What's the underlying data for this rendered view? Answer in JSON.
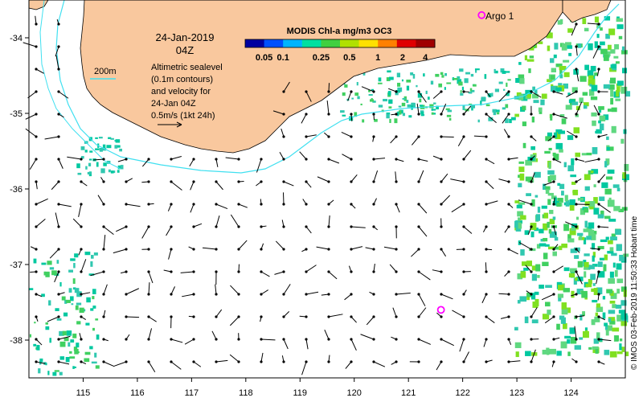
{
  "map": {
    "date_label": "24-Jan-2019",
    "time_label": "04Z",
    "contour_label": "200m",
    "legend_lines": [
      "Altimetric sealevel",
      "(0.1m contours)",
      "and velocity for",
      "24-Jan 04Z",
      "0.5m/s (1kt 24h)"
    ],
    "colorbar": {
      "title": "MODIS Chl-a mg/m3 OC3",
      "ticks": [
        "0.05",
        "0.1",
        "0.25",
        "0.5",
        "1",
        "2",
        "4"
      ],
      "colors": [
        "#0000a0",
        "#0050ff",
        "#00b4ff",
        "#00e0a0",
        "#40d040",
        "#b0e000",
        "#ffe000",
        "#ff8000",
        "#e00000",
        "#a00000"
      ]
    },
    "argo": {
      "label": "Argo 1",
      "floats": [
        {
          "lon": 122.35,
          "lat": -33.7
        },
        {
          "lon": 121.6,
          "lat": -37.6
        }
      ],
      "color": "#ff00ff"
    },
    "x_ticks": [
      "115",
      "116",
      "117",
      "118",
      "119",
      "120",
      "121",
      "122",
      "123",
      "124"
    ],
    "y_ticks": [
      "-34",
      "-35",
      "-36",
      "-37",
      "-38"
    ],
    "lon_range": [
      114.0,
      125.0
    ],
    "lat_range": [
      -38.5,
      -33.5
    ],
    "credit": "© IMOS 03-Feb-2019 11:50:33 Hobart time",
    "colors": {
      "land": "#f9c89e",
      "contour": "#40e0f0",
      "arrow": "#000000",
      "chl_mid": "#00c8a0",
      "chl_high": "#40d060",
      "chl_veryhigh": "#80e020"
    }
  }
}
